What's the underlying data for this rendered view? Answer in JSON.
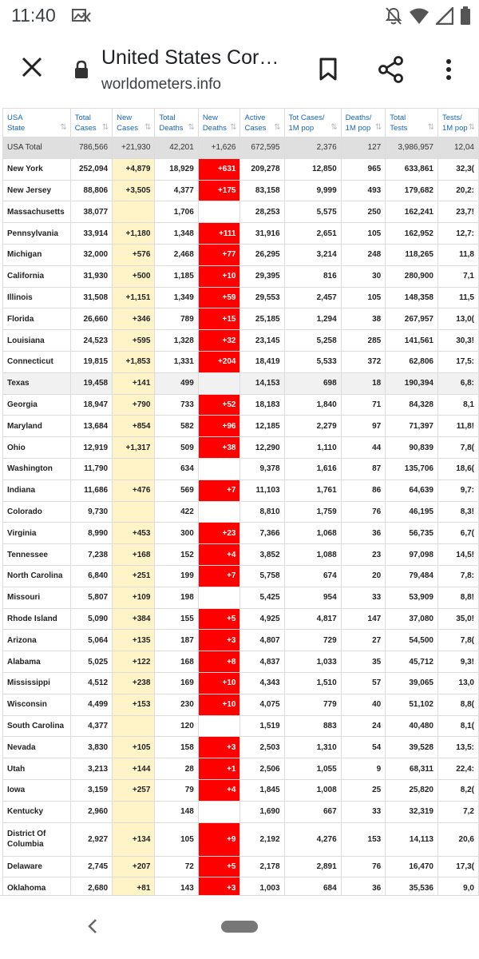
{
  "status_bar": {
    "time": "11:40",
    "notification_icon": "photo-notification-icon",
    "icons": [
      "notifications-off-icon",
      "wifi-icon",
      "cell-signal-icon",
      "battery-icon"
    ]
  },
  "header": {
    "title": "United States Cor…",
    "url": "worldometers.info",
    "icons": [
      "close-icon",
      "lock-icon",
      "bookmark-icon",
      "share-icon",
      "more-vert-icon"
    ]
  },
  "table": {
    "columns": [
      {
        "line1": "USA",
        "line2": "State"
      },
      {
        "line1": "Total",
        "line2": "Cases"
      },
      {
        "line1": "New",
        "line2": "Cases"
      },
      {
        "line1": "Total",
        "line2": "Deaths"
      },
      {
        "line1": "New",
        "line2": "Deaths"
      },
      {
        "line1": "Active",
        "line2": "Cases"
      },
      {
        "line1": "Tot Cases/",
        "line2": "1M pop"
      },
      {
        "line1": "Deaths/",
        "line2": "1M pop"
      },
      {
        "line1": "Total",
        "line2": "Tests"
      },
      {
        "line1": "Tests/",
        "line2": "1M pop"
      }
    ],
    "total_row": [
      "USA Total",
      "786,566",
      "+21,930",
      "42,201",
      "+1,626",
      "672,595",
      "2,376",
      "127",
      "3,986,957",
      "12,04"
    ],
    "rows": [
      [
        "New York",
        "252,094",
        "+4,879",
        "18,929",
        "+631",
        "209,278",
        "12,850",
        "965",
        "633,861",
        "32,3("
      ],
      [
        "New Jersey",
        "88,806",
        "+3,505",
        "4,377",
        "+175",
        "83,158",
        "9,999",
        "493",
        "179,682",
        "20,2:"
      ],
      [
        "Massachusetts",
        "38,077",
        "",
        "1,706",
        "",
        "28,253",
        "5,575",
        "250",
        "162,241",
        "23,7!"
      ],
      [
        "Pennsylvania",
        "33,914",
        "+1,180",
        "1,348",
        "+111",
        "31,916",
        "2,651",
        "105",
        "162,952",
        "12,7:"
      ],
      [
        "Michigan",
        "32,000",
        "+576",
        "2,468",
        "+77",
        "26,295",
        "3,214",
        "248",
        "118,265",
        "11,8"
      ],
      [
        "California",
        "31,930",
        "+500",
        "1,185",
        "+10",
        "29,395",
        "816",
        "30",
        "280,900",
        "7,1"
      ],
      [
        "Illinois",
        "31,508",
        "+1,151",
        "1,349",
        "+59",
        "29,553",
        "2,457",
        "105",
        "148,358",
        "11,5"
      ],
      [
        "Florida",
        "26,660",
        "+346",
        "789",
        "+15",
        "25,185",
        "1,294",
        "38",
        "267,957",
        "13,0("
      ],
      [
        "Louisiana",
        "24,523",
        "+595",
        "1,328",
        "+32",
        "23,145",
        "5,258",
        "285",
        "141,561",
        "30,3!"
      ],
      [
        "Connecticut",
        "19,815",
        "+1,853",
        "1,331",
        "+204",
        "18,419",
        "5,533",
        "372",
        "62,806",
        "17,5:"
      ],
      [
        "Texas",
        "19,458",
        "+141",
        "499",
        "",
        "14,153",
        "698",
        "18",
        "190,394",
        "6,8:"
      ],
      [
        "Georgia",
        "18,947",
        "+790",
        "733",
        "+52",
        "18,183",
        "1,840",
        "71",
        "84,328",
        "8,1"
      ],
      [
        "Maryland",
        "13,684",
        "+854",
        "582",
        "+96",
        "12,185",
        "2,279",
        "97",
        "71,397",
        "11,8!"
      ],
      [
        "Ohio",
        "12,919",
        "+1,317",
        "509",
        "+38",
        "12,290",
        "1,110",
        "44",
        "90,839",
        "7,8("
      ],
      [
        "Washington",
        "11,790",
        "",
        "634",
        "",
        "9,378",
        "1,616",
        "87",
        "135,706",
        "18,6("
      ],
      [
        "Indiana",
        "11,686",
        "+476",
        "569",
        "+7",
        "11,103",
        "1,761",
        "86",
        "64,639",
        "9,7:"
      ],
      [
        "Colorado",
        "9,730",
        "",
        "422",
        "",
        "8,810",
        "1,759",
        "76",
        "46,195",
        "8,3!"
      ],
      [
        "Virginia",
        "8,990",
        "+453",
        "300",
        "+23",
        "7,366",
        "1,068",
        "36",
        "56,735",
        "6,7("
      ],
      [
        "Tennessee",
        "7,238",
        "+168",
        "152",
        "+4",
        "3,852",
        "1,088",
        "23",
        "97,098",
        "14,5!"
      ],
      [
        "North Carolina",
        "6,840",
        "+251",
        "199",
        "+7",
        "5,758",
        "674",
        "20",
        "79,484",
        "7,8:"
      ],
      [
        "Missouri",
        "5,807",
        "+109",
        "198",
        "",
        "5,425",
        "954",
        "33",
        "53,909",
        "8,8!"
      ],
      [
        "Rhode Island",
        "5,090",
        "+384",
        "155",
        "+5",
        "4,925",
        "4,817",
        "147",
        "37,080",
        "35,0!"
      ],
      [
        "Arizona",
        "5,064",
        "+135",
        "187",
        "+3",
        "4,807",
        "729",
        "27",
        "54,500",
        "7,8("
      ],
      [
        "Alabama",
        "5,025",
        "+122",
        "168",
        "+8",
        "4,837",
        "1,033",
        "35",
        "45,712",
        "9,3!"
      ],
      [
        "Mississippi",
        "4,512",
        "+238",
        "169",
        "+10",
        "4,343",
        "1,510",
        "57",
        "39,065",
        "13,0"
      ],
      [
        "Wisconsin",
        "4,499",
        "+153",
        "230",
        "+10",
        "4,075",
        "779",
        "40",
        "51,102",
        "8,8("
      ],
      [
        "South Carolina",
        "4,377",
        "",
        "120",
        "",
        "1,519",
        "883",
        "24",
        "40,480",
        "8,1("
      ],
      [
        "Nevada",
        "3,830",
        "+105",
        "158",
        "+3",
        "2,503",
        "1,310",
        "54",
        "39,528",
        "13,5:"
      ],
      [
        "Utah",
        "3,213",
        "+144",
        "28",
        "+1",
        "2,506",
        "1,055",
        "9",
        "68,311",
        "22,4:"
      ],
      [
        "Iowa",
        "3,159",
        "+257",
        "79",
        "+4",
        "1,845",
        "1,008",
        "25",
        "25,820",
        "8,2("
      ],
      [
        "Kentucky",
        "2,960",
        "",
        "148",
        "",
        "1,690",
        "667",
        "33",
        "32,319",
        "7,2"
      ],
      [
        "District Of Columbia",
        "2,927",
        "+134",
        "105",
        "+9",
        "2,192",
        "4,276",
        "153",
        "14,113",
        "20,6"
      ],
      [
        "Delaware",
        "2,745",
        "+207",
        "72",
        "+5",
        "2,178",
        "2,891",
        "76",
        "16,470",
        "17,3("
      ],
      [
        "Oklahoma",
        "2,680",
        "+81",
        "143",
        "+3",
        "1,003",
        "684",
        "36",
        "35,536",
        "9,0"
      ]
    ],
    "alt_row_states": [
      "Texas"
    ],
    "colors": {
      "new_cases_bg": "#fff3c8",
      "new_deaths_bg": "#ff0000",
      "header_text": "#1565c0",
      "total_row_bg": "#dfdfdf"
    }
  },
  "nav": {
    "icons": [
      "back-icon",
      "home-pill"
    ]
  }
}
